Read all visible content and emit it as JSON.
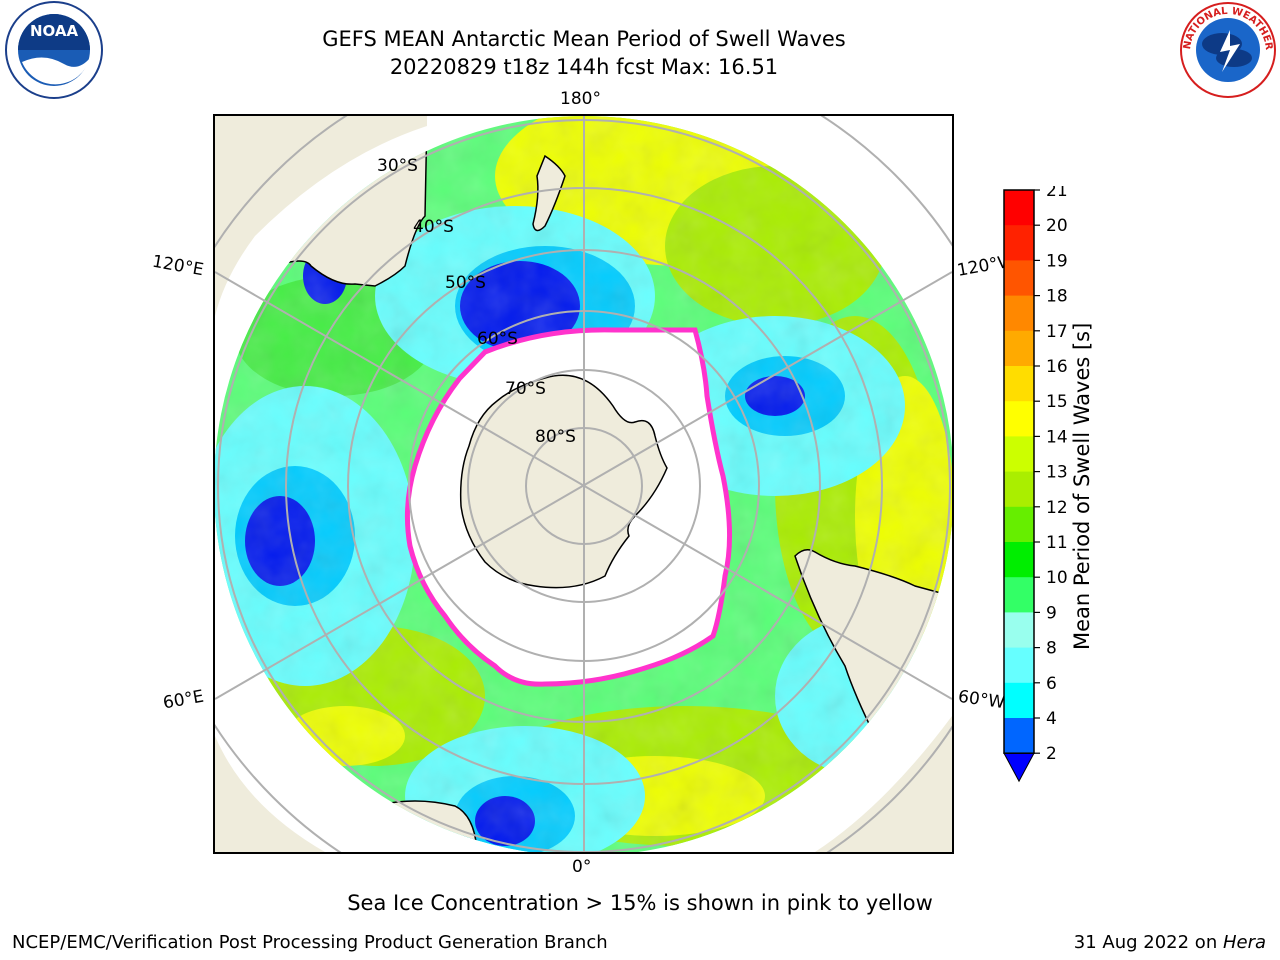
{
  "header": {
    "title_line1": "GEFS MEAN Antarctic Mean Period of Swell Waves",
    "title_line2": "20220829 t18z 144h fcst   Max: 16.51"
  },
  "logos": {
    "noaa_text": "NOAA",
    "nws_text": "NATIONAL WEATHER SERVICE"
  },
  "map": {
    "projection": "south-polar-stereographic",
    "lon_labels": {
      "top": "180°",
      "bottom": "0°",
      "left_upper": "120°E",
      "left_lower": "60°E",
      "right_upper": "120°W",
      "right_lower": "60°W"
    },
    "lat_labels": [
      "30°S",
      "40°S",
      "50°S",
      "60°S",
      "70°S",
      "80°S"
    ],
    "colors": {
      "land": "#efecdc",
      "ice_free": "#ffffff",
      "ice_edge": "#ff33cc",
      "graticule": "#b0b0b0"
    }
  },
  "colorbar": {
    "label": "Mean Period of Swell Waves [s]",
    "levels": [
      2,
      4,
      6,
      8,
      9,
      10,
      11,
      12,
      13,
      14,
      15,
      16,
      17,
      18,
      19,
      20,
      21
    ],
    "colors": [
      "#0066ff",
      "#00ccff",
      "#00ffff",
      "#66ffff",
      "#99ffee",
      "#33ff66",
      "#00ee00",
      "#66ee00",
      "#aaee00",
      "#ccff00",
      "#ffff00",
      "#ffdd00",
      "#ffaa00",
      "#ff8800",
      "#ff5500",
      "#ff2200",
      "#ff0000"
    ],
    "under_color": "#0000ff",
    "extend": "min"
  },
  "note": "Sea Ice Concentration > 15% is shown in pink to yellow",
  "footer": {
    "left": "NCEP/EMC/Verification Post Processing Product Generation Branch",
    "right_date": "31 Aug 2022 on ",
    "right_host": "Hera"
  }
}
